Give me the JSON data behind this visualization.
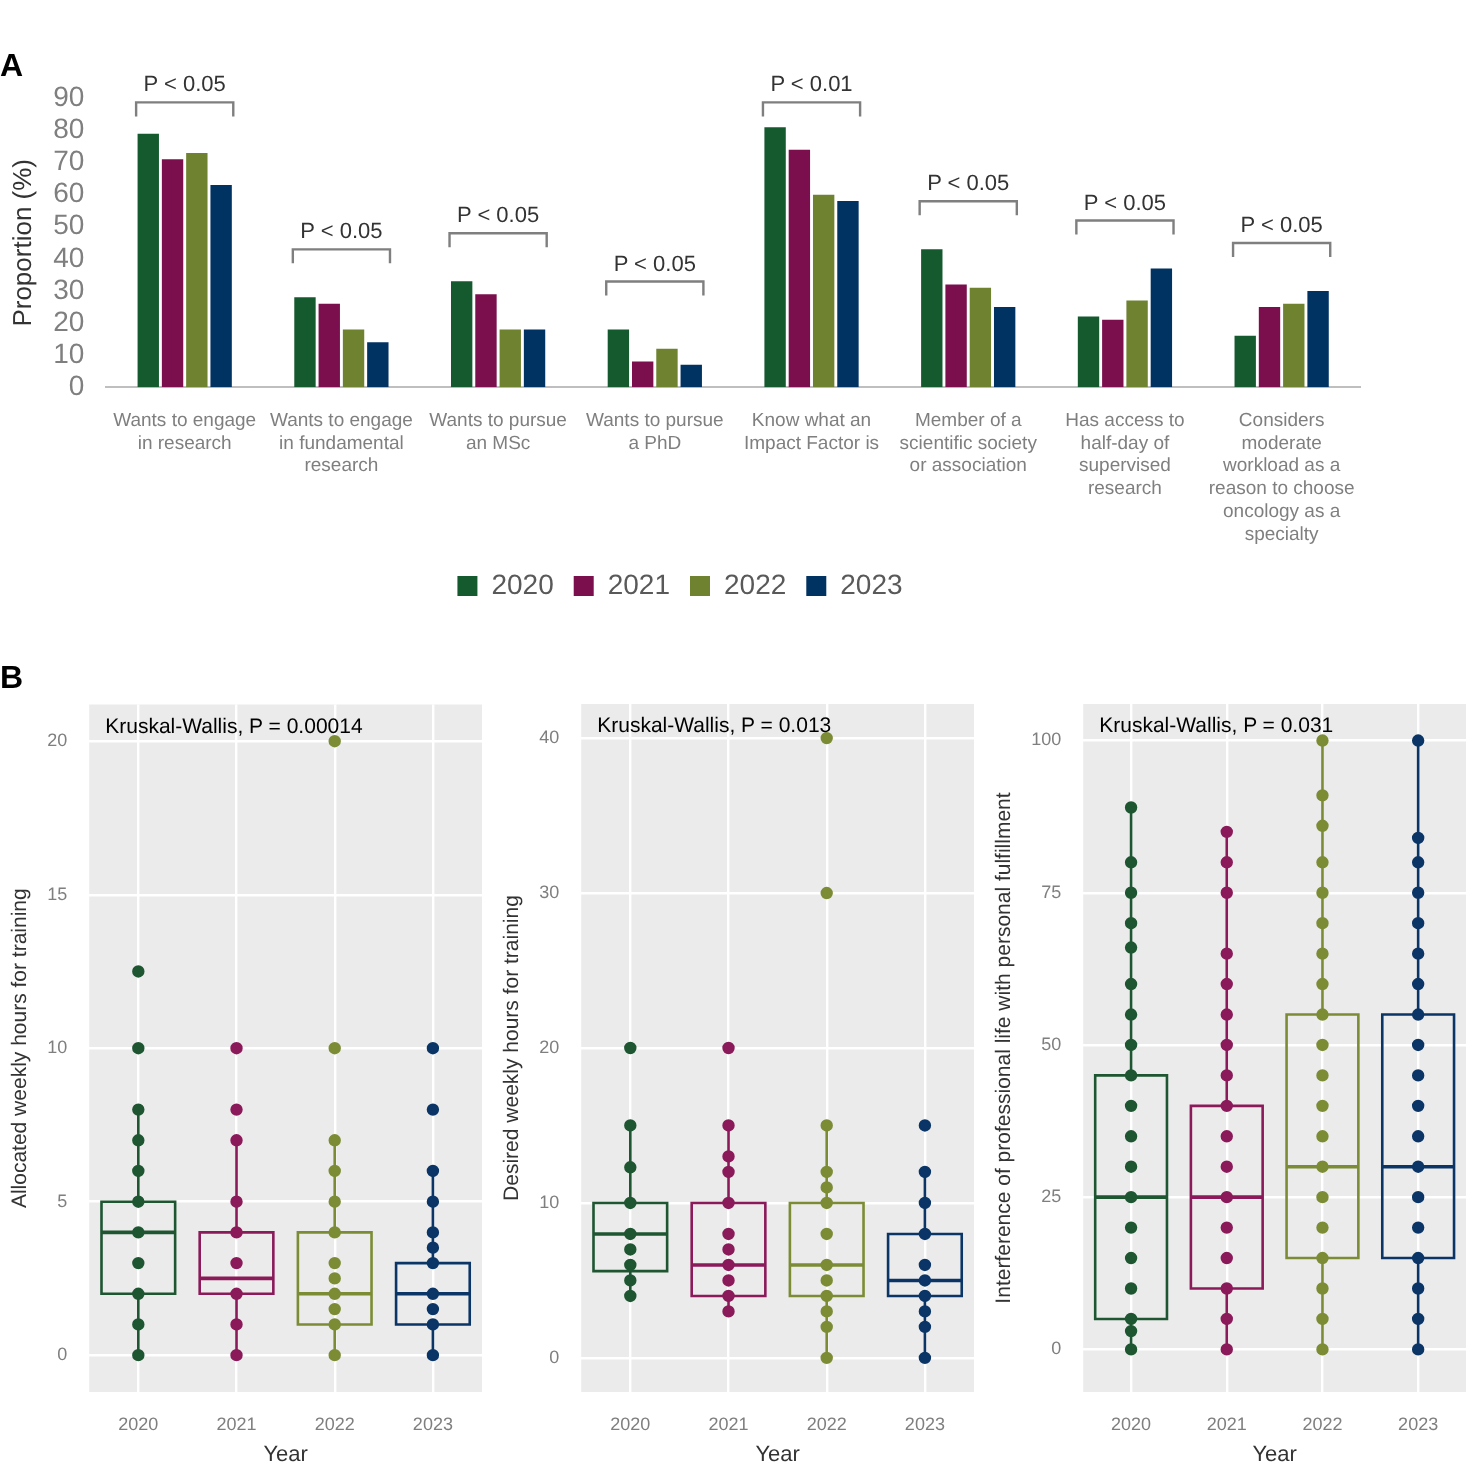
{
  "chart_data": [
    {
      "type": "bar",
      "title": "A",
      "ylabel": "Proportion (%)",
      "categories": [
        "Wants to engage in research",
        "Wants to engage in fundamental research",
        "Wants to pursue an MSc",
        "Wants to pursue a PhD",
        "Know what an Impact Factor is",
        "Member of a scientific society or association",
        "Has access to half-day of supervised research",
        "Considers moderate workload as a reason to choose oncology as a specialty"
      ],
      "series": [
        {
          "name": "2020",
          "color": "#155a2e",
          "values": [
            79,
            28,
            33,
            18,
            81,
            43,
            22,
            16
          ]
        },
        {
          "name": "2021",
          "color": "#7b0f4e",
          "values": [
            71,
            26,
            29,
            8,
            74,
            32,
            21,
            25
          ]
        },
        {
          "name": "2022",
          "color": "#6e8230",
          "values": [
            73,
            18,
            18,
            12,
            60,
            31,
            27,
            26
          ]
        },
        {
          "name": "2023",
          "color": "#003262",
          "values": [
            63,
            14,
            18,
            7,
            58,
            25,
            37,
            30
          ]
        }
      ],
      "ylim": [
        0,
        90
      ],
      "yticks": [
        0,
        10,
        20,
        30,
        40,
        50,
        60,
        70,
        80,
        90
      ],
      "grid": false,
      "legend": "bottom",
      "annotations": [
        "P < 0.05",
        "P < 0.05",
        "P < 0.05",
        "P < 0.05",
        "P < 0.01",
        "P < 0.05",
        "P < 0.05",
        "P < 0.05"
      ]
    },
    {
      "type": "box",
      "title": "B",
      "xlabel": "Year",
      "ylabel": "Allocated weekly hours for training",
      "x": [
        2020,
        2021,
        2022,
        2023
      ],
      "xlim": [
        2019.5,
        2023.5
      ],
      "xticks": [
        2020,
        2021,
        2022,
        2023
      ],
      "colors": [
        "#1e5631",
        "#8b1a5a",
        "#7b8c35",
        "#0a3566"
      ],
      "boxes": [
        {
          "low": 0,
          "q1": 2,
          "median": 4,
          "q3": 5,
          "high": 8
        },
        {
          "low": 0,
          "q1": 2,
          "median": 2.5,
          "q3": 4,
          "high": 7
        },
        {
          "low": 0,
          "q1": 1,
          "median": 2,
          "q3": 4,
          "high": 7
        },
        {
          "low": 0,
          "q1": 1,
          "median": 2,
          "q3": 3,
          "high": 6
        }
      ],
      "series": [
        {
          "type": "scatter",
          "color": "#1e5631",
          "x": [
            2020,
            2020,
            2020,
            2020,
            2020,
            2020,
            2020,
            2020,
            2020,
            2020,
            2020
          ],
          "values": [
            0,
            1,
            2,
            3,
            4,
            5,
            6,
            7,
            8,
            10,
            12.5
          ]
        },
        {
          "type": "scatter",
          "color": "#8b1a5a",
          "x": [
            2021,
            2021,
            2021,
            2021,
            2021,
            2021,
            2021,
            2021,
            2021
          ],
          "values": [
            0,
            1,
            2,
            3,
            4,
            5,
            7,
            8,
            10
          ]
        },
        {
          "type": "scatter",
          "color": "#7b8c35",
          "x": [
            2022,
            2022,
            2022,
            2022,
            2022,
            2022,
            2022,
            2022,
            2022,
            2022,
            2022,
            2022
          ],
          "values": [
            0,
            1,
            1.5,
            2,
            2.5,
            3,
            4,
            5,
            6,
            7,
            10,
            20
          ]
        },
        {
          "type": "scatter",
          "color": "#0a3566",
          "x": [
            2023,
            2023,
            2023,
            2023,
            2023,
            2023,
            2023,
            2023,
            2023,
            2023,
            2023
          ],
          "values": [
            0,
            1,
            1.5,
            2,
            3,
            3.5,
            4,
            5,
            6,
            8,
            10
          ]
        }
      ],
      "ylim": [
        -1.2,
        21.2
      ],
      "yticks": [
        0,
        5,
        10,
        15,
        20
      ],
      "grid": true,
      "annotations": [
        "Kruskal-Wallis, P = 0.00014"
      ]
    },
    {
      "type": "box",
      "xlabel": "Year",
      "ylabel": "Desired weekly hours for training",
      "x": [
        2020,
        2021,
        2022,
        2023
      ],
      "xlim": [
        2019.5,
        2023.5
      ],
      "xticks": [
        2020,
        2021,
        2022,
        2023
      ],
      "colors": [
        "#1e5631",
        "#8b1a5a",
        "#7b8c35",
        "#0a3566"
      ],
      "boxes": [
        {
          "low": 4,
          "q1": 5.6,
          "median": 8,
          "q3": 10,
          "high": 15
        },
        {
          "low": 3,
          "q1": 4,
          "median": 6,
          "q3": 10,
          "high": 15
        },
        {
          "low": 0,
          "q1": 4,
          "median": 6,
          "q3": 10,
          "high": 15
        },
        {
          "low": 0,
          "q1": 4,
          "median": 5,
          "q3": 8,
          "high": 12
        }
      ],
      "series": [
        {
          "type": "scatter",
          "color": "#1e5631",
          "x": [
            2020,
            2020,
            2020,
            2020,
            2020,
            2020,
            2020,
            2020,
            2020
          ],
          "values": [
            4,
            5,
            6,
            7,
            8,
            10,
            12.3,
            15,
            20
          ]
        },
        {
          "type": "scatter",
          "color": "#8b1a5a",
          "x": [
            2021,
            2021,
            2021,
            2021,
            2021,
            2021,
            2021,
            2021,
            2021,
            2021,
            2021
          ],
          "values": [
            3,
            4,
            5,
            6,
            7,
            8,
            10,
            12,
            13,
            15,
            20
          ]
        },
        {
          "type": "scatter",
          "color": "#7b8c35",
          "x": [
            2022,
            2022,
            2022,
            2022,
            2022,
            2022,
            2022,
            2022,
            2022,
            2022,
            2022,
            2022,
            2022
          ],
          "values": [
            0,
            2,
            3,
            4,
            5,
            6,
            8,
            10,
            11,
            12,
            15,
            30,
            40
          ]
        },
        {
          "type": "scatter",
          "color": "#0a3566",
          "x": [
            2023,
            2023,
            2023,
            2023,
            2023,
            2023,
            2023,
            2023,
            2023,
            2023
          ],
          "values": [
            0,
            2,
            3,
            4,
            5,
            6,
            8,
            10,
            12,
            15
          ]
        }
      ],
      "ylim": [
        -2.2,
        42.2
      ],
      "yticks": [
        0,
        10,
        20,
        30,
        40
      ],
      "grid": true,
      "annotations": [
        "Kruskal-Wallis, P = 0.013"
      ]
    },
    {
      "type": "box",
      "xlabel": "Year",
      "ylabel": "Interference of professional life with personal fulfillment",
      "x": [
        2020,
        2021,
        2022,
        2023
      ],
      "xlim": [
        2019.5,
        2023.5
      ],
      "xticks": [
        2020,
        2021,
        2022,
        2023
      ],
      "colors": [
        "#1e5631",
        "#8b1a5a",
        "#7b8c35",
        "#0a3566"
      ],
      "boxes": [
        {
          "low": 0,
          "q1": 5,
          "median": 25,
          "q3": 45,
          "high": 89
        },
        {
          "low": 0,
          "q1": 10,
          "median": 25,
          "q3": 40,
          "high": 85
        },
        {
          "low": 0,
          "q1": 15,
          "median": 30,
          "q3": 55,
          "high": 100
        },
        {
          "low": 0,
          "q1": 15,
          "median": 30,
          "q3": 55,
          "high": 100
        }
      ],
      "series": [
        {
          "type": "scatter",
          "color": "#1e5631",
          "x": [
            2020,
            2020,
            2020,
            2020,
            2020,
            2020,
            2020,
            2020,
            2020,
            2020,
            2020,
            2020,
            2020,
            2020,
            2020,
            2020,
            2020,
            2020,
            2020
          ],
          "values": [
            0,
            3,
            5,
            10,
            15,
            20,
            25,
            30,
            35,
            40,
            45,
            50,
            55,
            60,
            66,
            70,
            75,
            80,
            89
          ]
        },
        {
          "type": "scatter",
          "color": "#8b1a5a",
          "x": [
            2021,
            2021,
            2021,
            2021,
            2021,
            2021,
            2021,
            2021,
            2021,
            2021,
            2021,
            2021,
            2021,
            2021,
            2021,
            2021,
            2021
          ],
          "values": [
            0,
            5,
            10,
            15,
            20,
            25,
            30,
            35,
            40,
            45,
            50,
            55,
            60,
            65,
            75,
            80,
            85
          ]
        },
        {
          "type": "scatter",
          "color": "#7b8c35",
          "x": [
            2022,
            2022,
            2022,
            2022,
            2022,
            2022,
            2022,
            2022,
            2022,
            2022,
            2022,
            2022,
            2022,
            2022,
            2022,
            2022,
            2022,
            2022,
            2022,
            2022
          ],
          "values": [
            0,
            5,
            10,
            15,
            20,
            25,
            30,
            35,
            40,
            45,
            50,
            55,
            60,
            65,
            70,
            75,
            80,
            86,
            91,
            100
          ]
        },
        {
          "type": "scatter",
          "color": "#0a3566",
          "x": [
            2023,
            2023,
            2023,
            2023,
            2023,
            2023,
            2023,
            2023,
            2023,
            2023,
            2023,
            2023,
            2023,
            2023,
            2023,
            2023,
            2023,
            2023,
            2023
          ],
          "values": [
            0,
            5,
            10,
            15,
            20,
            25,
            30,
            35,
            40,
            45,
            50,
            55,
            60,
            65,
            70,
            75,
            80,
            84,
            100
          ]
        }
      ],
      "ylim": [
        -7,
        106
      ],
      "yticks": [
        0,
        25,
        50,
        75,
        100
      ],
      "grid": true,
      "annotations": [
        "Kruskal-Wallis, P = 0.031"
      ]
    }
  ]
}
